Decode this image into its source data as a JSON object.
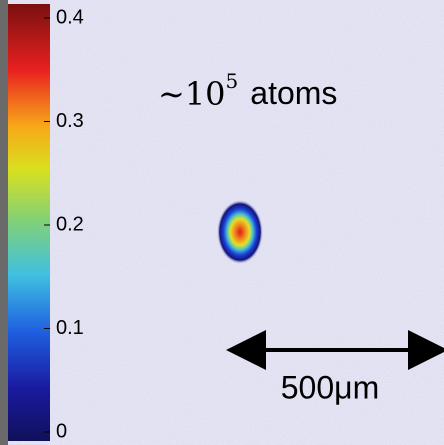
{
  "colorbar": {
    "lim": [
      0,
      0.4
    ],
    "ticks": [
      0,
      0.1,
      0.2,
      0.3,
      0.4
    ]
  },
  "annotations": {
    "atom_count": {
      "prefix": "∼10",
      "exponent": "5",
      "suffix": "atoms"
    },
    "scale_bar": "500μm"
  }
}
